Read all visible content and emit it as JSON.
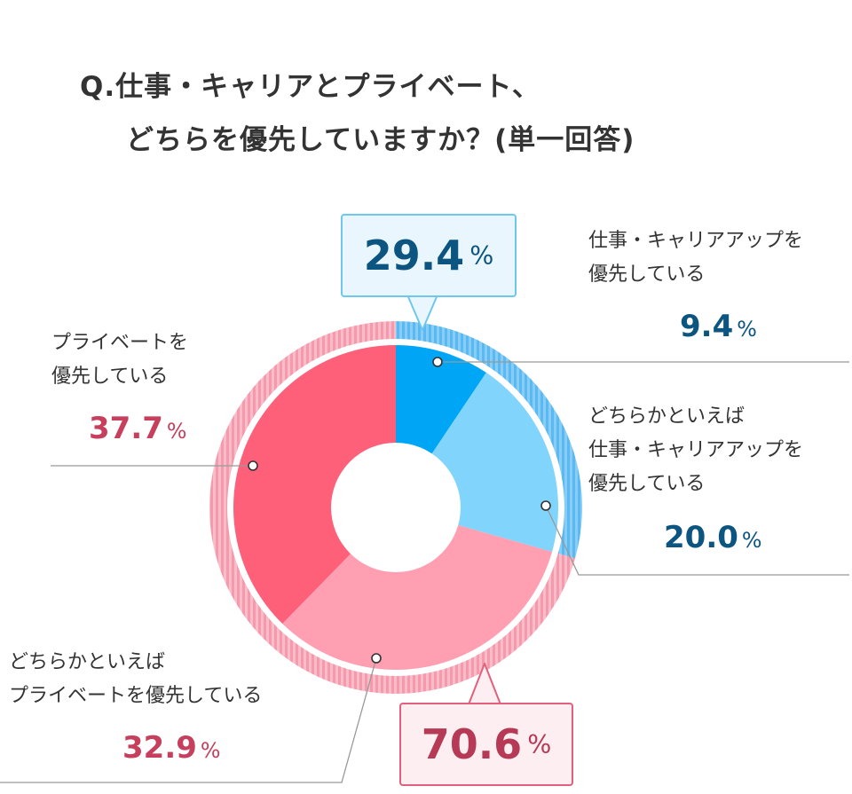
{
  "title": {
    "line1": "Q.仕事・キャリアとプライベート、",
    "line2": "どちらを優先していますか？(単一回答)"
  },
  "chart_data": {
    "type": "pie",
    "title": "Q.仕事・キャリアとプライベート、どちらを優先していますか？(単一回答)",
    "unit": "%",
    "slices": [
      {
        "label": "仕事・キャリアアップを優先している",
        "value": 9.4,
        "color": "#00a6f6"
      },
      {
        "label": "どちらかといえば仕事・キャリアアップを優先している",
        "value": 20.0,
        "color": "#81d4fc"
      },
      {
        "label": "どちらかといえばプライベートを優先している",
        "value": 32.9,
        "color": "#ff9fb1"
      },
      {
        "label": "プライベートを優先している",
        "value": 37.7,
        "color": "#fe5f79"
      }
    ],
    "groups": [
      {
        "value": 29.4,
        "color": "#4bb3f0"
      },
      {
        "value": 70.6,
        "color": "#f4a2b2"
      }
    ]
  },
  "labels": {
    "work": {
      "line1": "仕事・キャリアアップを",
      "line2": "優先している",
      "value": "9.4",
      "pct": "%"
    },
    "rather_work": {
      "line1": "どちらかといえば",
      "line2": "仕事・キャリアアップを",
      "line3": "優先している",
      "value": "20.0",
      "pct": "%"
    },
    "private": {
      "line1": "プライベートを",
      "line2": "優先している",
      "value": "37.7",
      "pct": "%"
    },
    "rather_private": {
      "line1": "どちらかといえば",
      "line2": "プライベートを優先している",
      "value": "32.9",
      "pct": "%"
    }
  },
  "callouts": {
    "work_total": {
      "value": "29.4",
      "pct": "%"
    },
    "private_total": {
      "value": "70.6",
      "pct": "%"
    }
  }
}
